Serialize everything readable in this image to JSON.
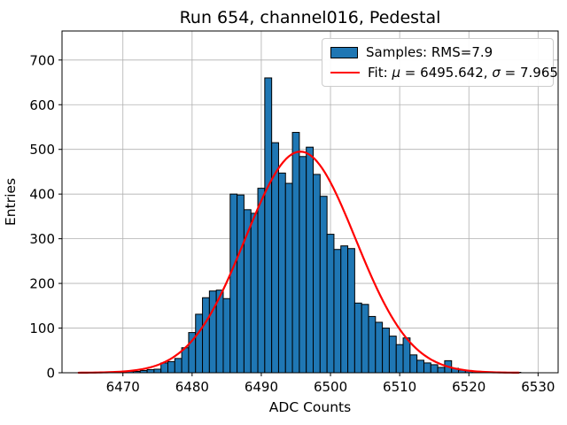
{
  "title": "Run 654, channel016, Pedestal",
  "axes": {
    "xlabel": "ADC Counts",
    "ylabel": "Entries",
    "x_ticks": [
      6470,
      6480,
      6490,
      6500,
      6510,
      6520,
      6530
    ],
    "y_ticks": [
      0,
      100,
      200,
      300,
      400,
      500,
      600,
      700
    ]
  },
  "legend": {
    "samples_label": "Samples: RMS=7.9",
    "fit_label": "Fit: μ = 6495.642, σ = 7.965"
  },
  "colors": {
    "bar_fill": "#1f77b4",
    "bar_edge": "#000000",
    "fit_line": "#ff0000",
    "grid": "#b0b0b0",
    "axes_frame": "#000000",
    "background": "#ffffff",
    "legend_border": "#cccccc"
  },
  "chart_data": {
    "type": "bar",
    "subtype": "histogram",
    "title": "Run 654, channel016, Pedestal",
    "xlabel": "ADC Counts",
    "ylabel": "Entries",
    "xlim": [
      6461.2,
      6532.9
    ],
    "ylim": [
      0,
      765
    ],
    "grid": true,
    "legend_position": "upper right",
    "bin_width": 1,
    "bin_centers": [
      6466,
      6467,
      6468,
      6469,
      6470,
      6471,
      6472,
      6473,
      6474,
      6475,
      6476,
      6477,
      6478,
      6479,
      6480,
      6481,
      6482,
      6483,
      6484,
      6485,
      6486,
      6487,
      6488,
      6489,
      6490,
      6491,
      6492,
      6493,
      6494,
      6495,
      6496,
      6497,
      6498,
      6499,
      6500,
      6501,
      6502,
      6503,
      6504,
      6505,
      6506,
      6507,
      6508,
      6509,
      6510,
      6511,
      6512,
      6513,
      6514,
      6515,
      6516,
      6517,
      6518,
      6519,
      6520,
      6521,
      6522,
      6523,
      6524,
      6525,
      6526,
      6527
    ],
    "counts": [
      1,
      1,
      2,
      1,
      2,
      3,
      3,
      5,
      7,
      8,
      22,
      25,
      32,
      56,
      90,
      131,
      168,
      183,
      185,
      166,
      400,
      398,
      365,
      357,
      413,
      660,
      515,
      447,
      424,
      538,
      484,
      505,
      444,
      395,
      310,
      276,
      284,
      278,
      156,
      153,
      126,
      113,
      100,
      82,
      63,
      78,
      40,
      28,
      22,
      18,
      12,
      27,
      10,
      6,
      5,
      3,
      2,
      2,
      1,
      1,
      1,
      1
    ],
    "series": [
      {
        "name": "Samples: RMS=7.9",
        "rms": 7.9
      },
      {
        "name": "Fit: μ = 6495.642, σ = 7.965",
        "fit_mu": 6495.642,
        "fit_sigma": 7.965
      }
    ],
    "fit": {
      "type": "gaussian",
      "amplitude": 495,
      "mu": 6495.642,
      "sigma": 7.965,
      "x_range": [
        6463.6,
        6527.4
      ]
    }
  }
}
